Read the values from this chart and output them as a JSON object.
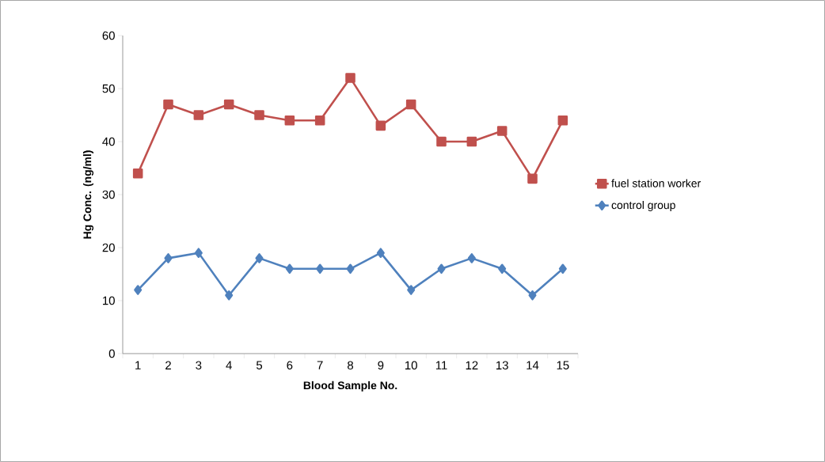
{
  "chart_data": {
    "type": "line",
    "xlabel": "Blood Sample No.",
    "ylabel": "Hg Conc. (ng/ml)",
    "categories": [
      "1",
      "2",
      "3",
      "4",
      "5",
      "6",
      "7",
      "8",
      "9",
      "10",
      "11",
      "12",
      "13",
      "14",
      "15"
    ],
    "series": [
      {
        "name": "fuel station worker",
        "color": "#c0504d",
        "marker": "square",
        "values": [
          34,
          47,
          45,
          47,
          45,
          44,
          44,
          52,
          43,
          47,
          40,
          40,
          42,
          33,
          44
        ]
      },
      {
        "name": "control group",
        "color": "#4f81bd",
        "marker": "diamond",
        "values": [
          12,
          18,
          19,
          11,
          18,
          16,
          16,
          16,
          19,
          12,
          16,
          18,
          16,
          11,
          16
        ]
      }
    ],
    "ylim": [
      0,
      60
    ],
    "yticks": [
      0,
      10,
      20,
      30,
      40,
      50,
      60
    ],
    "grid": false,
    "legend": "right",
    "line_style": "solid"
  }
}
